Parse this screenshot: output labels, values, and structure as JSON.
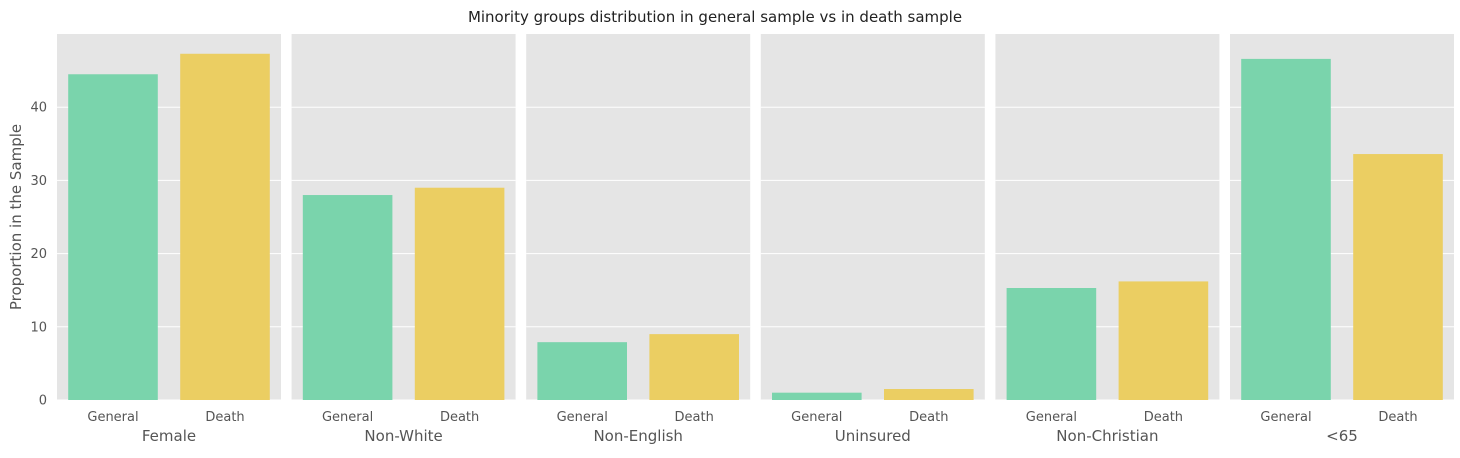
{
  "chart_data": {
    "type": "bar",
    "title": "Minority groups distribution in general sample vs in death sample",
    "ylabel": "Proportion in the Sample",
    "ylim": [
      0,
      50
    ],
    "yticks": [
      0,
      10,
      20,
      30,
      40
    ],
    "grid": true,
    "categories": [
      "General",
      "Death"
    ],
    "colors": {
      "General": "#7ad4ac",
      "Death": "#ebce62",
      "panel_bg": "#e5e5e5",
      "grid": "#ffffff",
      "text": "#555555"
    },
    "panels": [
      {
        "label": "Female",
        "values": [
          44.5,
          47.3
        ]
      },
      {
        "label": "Non-White",
        "values": [
          28.0,
          29.0
        ]
      },
      {
        "label": "Non-English",
        "values": [
          7.9,
          9.0
        ]
      },
      {
        "label": "Uninsured",
        "values": [
          1.0,
          1.5
        ]
      },
      {
        "label": "Non-Christian",
        "values": [
          15.3,
          16.2
        ]
      },
      {
        "label": "<65",
        "values": [
          46.6,
          33.6
        ]
      }
    ]
  }
}
